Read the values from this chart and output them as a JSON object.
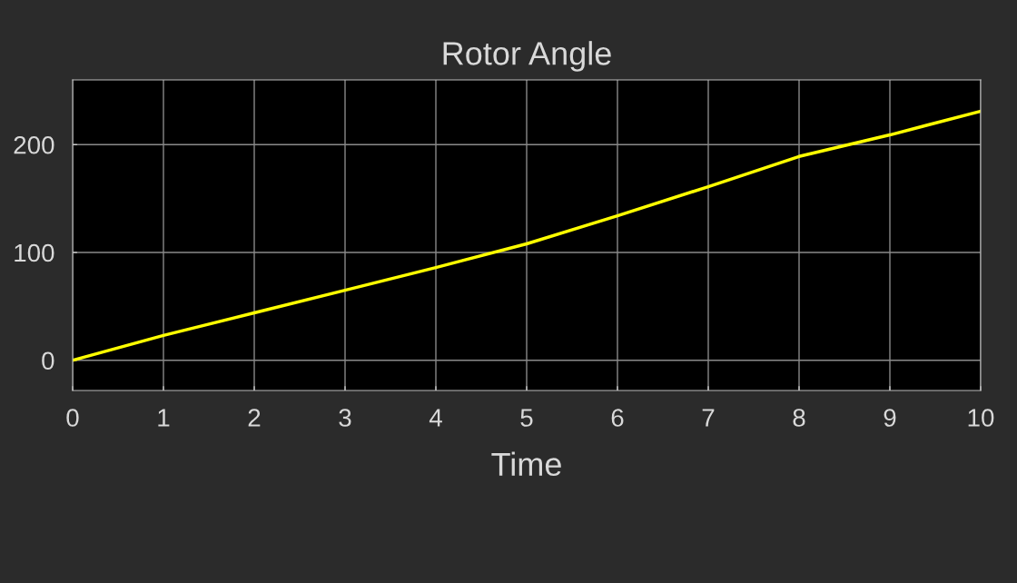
{
  "chart_data": {
    "type": "line",
    "title": "Rotor Angle",
    "xlabel": "Time",
    "x": [
      0,
      1,
      2,
      3,
      4,
      5,
      6,
      7,
      8,
      9,
      10
    ],
    "series": [
      {
        "color": "#ffff00",
        "values": [
          0,
          23,
          44,
          65,
          86,
          108,
          134,
          161,
          189,
          209,
          231
        ]
      }
    ],
    "xlim": [
      0,
      10
    ],
    "xticks": [
      0,
      1,
      2,
      3,
      4,
      5,
      6,
      7,
      8,
      9,
      10
    ],
    "ylim": [
      -28,
      260
    ],
    "yticks": [
      0,
      100,
      200
    ],
    "grid": true,
    "line_style": "solid",
    "marker": "none"
  }
}
